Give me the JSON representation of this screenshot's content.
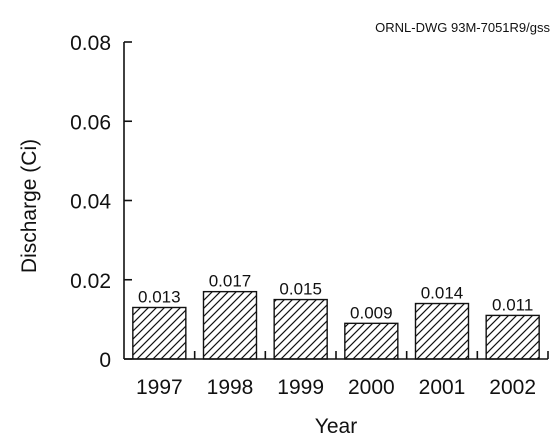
{
  "figure": {
    "drawing_id": "ORNL-DWG 93M-7051R9/gss"
  },
  "chart_data": {
    "type": "bar",
    "categories": [
      "1997",
      "1998",
      "1999",
      "2000",
      "2001",
      "2002"
    ],
    "values": [
      0.013,
      0.017,
      0.015,
      0.009,
      0.014,
      0.011
    ],
    "value_labels": [
      "0.013",
      "0.017",
      "0.015",
      "0.009",
      "0.014",
      "0.011"
    ],
    "xlabel": "Year",
    "ylabel": "Discharge (Ci)",
    "ylim": [
      0,
      0.08
    ],
    "yticks": [
      0,
      0.02,
      0.04,
      0.06,
      0.08
    ],
    "ytick_labels": [
      "0",
      "0.02",
      "0.04",
      "0.06",
      "0.08"
    ],
    "grid": false,
    "bar_fill": "diagonal-hatch",
    "colors": {
      "ink": "#111111",
      "background": "#ffffff"
    }
  }
}
